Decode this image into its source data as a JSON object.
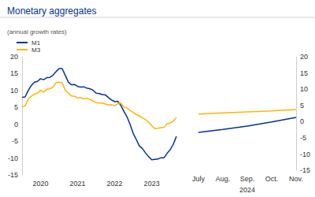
{
  "chart_data": [
    {
      "type": "line",
      "title": "Monetary aggregates",
      "subtitle": "(annual growth rates)",
      "categories": [
        null,
        null,
        null,
        null,
        null,
        null,
        "2020",
        null,
        null,
        null,
        null,
        null,
        null,
        null,
        null,
        null,
        null,
        null,
        "2021",
        null,
        null,
        null,
        null,
        null,
        null,
        null,
        null,
        null,
        null,
        null,
        "2022",
        null,
        null,
        null,
        null,
        null,
        null,
        null,
        null,
        null,
        null,
        null,
        "2023",
        null,
        null,
        null,
        null,
        null,
        null,
        null,
        null
      ],
      "series": [
        {
          "name": "M1",
          "color": "#003299",
          "values": [
            8,
            8.1,
            10,
            11.5,
            12.5,
            12.7,
            13.5,
            13.2,
            13.8,
            13.9,
            14.5,
            15.6,
            16.5,
            16.5,
            14.5,
            12.5,
            11.7,
            11.8,
            11.2,
            11,
            11.1,
            10.7,
            10.5,
            10.1,
            9.2,
            9.1,
            8.8,
            8.7,
            7.9,
            7.2,
            6.7,
            6.8,
            5.6,
            3.8,
            2.2,
            0,
            -2.7,
            -4.5,
            -6.4,
            -7.2,
            -8.5,
            -9.6,
            -10.5,
            -10.4,
            -10.3,
            -9.9,
            -9.9,
            -8.6,
            -7.5,
            -5.9,
            -3.6
          ]
        },
        {
          "name": "M3",
          "color": "#ffb400",
          "values": [
            5.2,
            5.5,
            7.5,
            8.3,
            8.9,
            9.2,
            10.1,
            9.5,
            10.4,
            10.5,
            11,
            12.3,
            12.5,
            12.3,
            10.1,
            9.2,
            8.4,
            8.3,
            7.7,
            7.9,
            7.5,
            7.7,
            7.4,
            6.9,
            6.4,
            6.3,
            6.3,
            6,
            5.7,
            5.8,
            5.5,
            6.1,
            6.3,
            5.1,
            4.8,
            4.1,
            3.5,
            2.9,
            2.5,
            1.9,
            1.4,
            0.6,
            -0.4,
            -1.3,
            -1.2,
            -1,
            -0.9,
            0.2,
            0.4,
            0.9,
            2.0
          ]
        }
      ],
      "ylim": [
        -15,
        20
      ],
      "yticks": [
        -15,
        -10,
        -5,
        0,
        5,
        10,
        15,
        20
      ],
      "grid": false,
      "legend": "top-left"
    },
    {
      "type": "line",
      "categories": [
        "July",
        "Aug.",
        "Sep.",
        "Oct.",
        "Nov."
      ],
      "xlabel": "2024",
      "series": [
        {
          "name": "M1",
          "color": "#003299",
          "values": [
            -3.3,
            -2.4,
            -1.4,
            -0.1,
            1.3
          ]
        },
        {
          "name": "M3",
          "color": "#ffb400",
          "values": [
            2.3,
            2.7,
            3.0,
            3.3,
            3.7
          ]
        }
      ],
      "ylim": [
        -15,
        20
      ],
      "yticks": [
        -15,
        -10,
        -5,
        0,
        5,
        10,
        15,
        20
      ],
      "grid": false
    }
  ]
}
